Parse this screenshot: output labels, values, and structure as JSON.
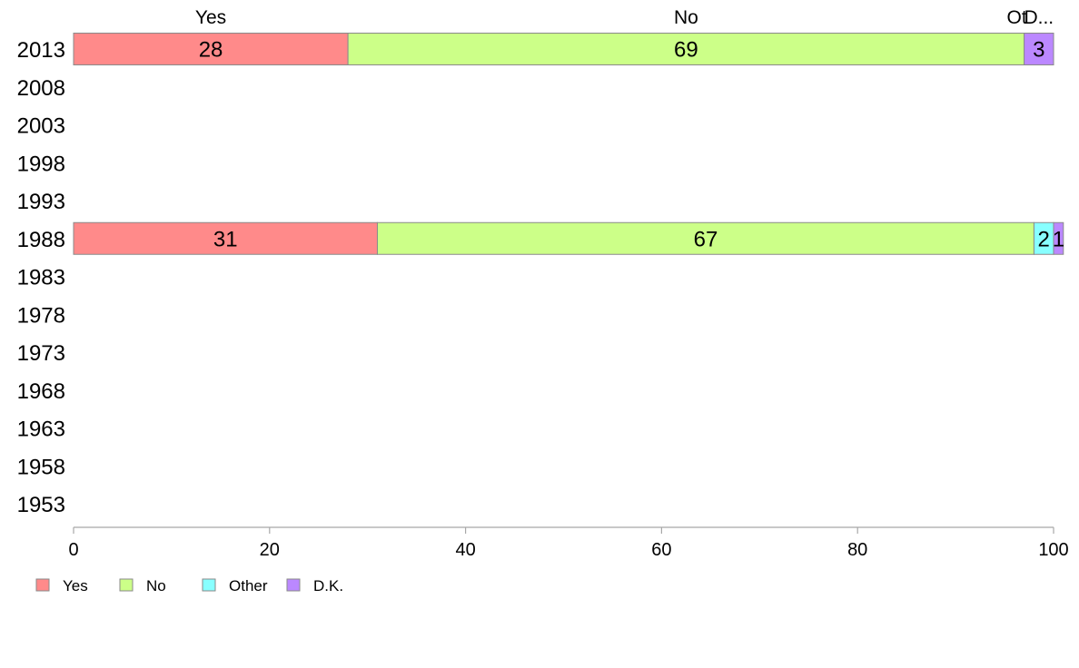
{
  "chart_data": {
    "type": "bar",
    "orientation": "horizontal",
    "stacked": true,
    "categories": [
      "2013",
      "2008",
      "2003",
      "1998",
      "1993",
      "1988",
      "1983",
      "1978",
      "1973",
      "1968",
      "1963",
      "1958",
      "1953"
    ],
    "series": [
      {
        "name": "Yes",
        "color": "#ff8a8a",
        "values": [
          28,
          null,
          null,
          null,
          null,
          31,
          null,
          null,
          null,
          null,
          null,
          null,
          null
        ]
      },
      {
        "name": "No",
        "color": "#ccff88",
        "values": [
          69,
          null,
          null,
          null,
          null,
          67,
          null,
          null,
          null,
          null,
          null,
          null,
          null
        ]
      },
      {
        "name": "Other",
        "color": "#88ffff",
        "values": [
          0,
          null,
          null,
          null,
          null,
          2,
          null,
          null,
          null,
          null,
          null,
          null,
          null
        ]
      },
      {
        "name": "D.K.",
        "color": "#bb88ff",
        "values": [
          3,
          null,
          null,
          null,
          null,
          1,
          null,
          null,
          null,
          null,
          null,
          null,
          null
        ]
      }
    ],
    "bar_labels": [
      {
        "category": "2013",
        "labels": [
          "28",
          "69",
          "",
          "3"
        ]
      },
      {
        "category": "1988",
        "labels": [
          "31",
          "67",
          "2",
          "1"
        ]
      }
    ],
    "top_labels": [
      "Yes",
      "No",
      "Ot",
      "D..."
    ],
    "xlim": [
      0,
      100
    ],
    "xticks": [
      "0",
      "20",
      "40",
      "60",
      "80",
      "100"
    ],
    "title": "",
    "xlabel": "",
    "ylabel": "",
    "grid": false,
    "legend_position": "bottom-left"
  }
}
